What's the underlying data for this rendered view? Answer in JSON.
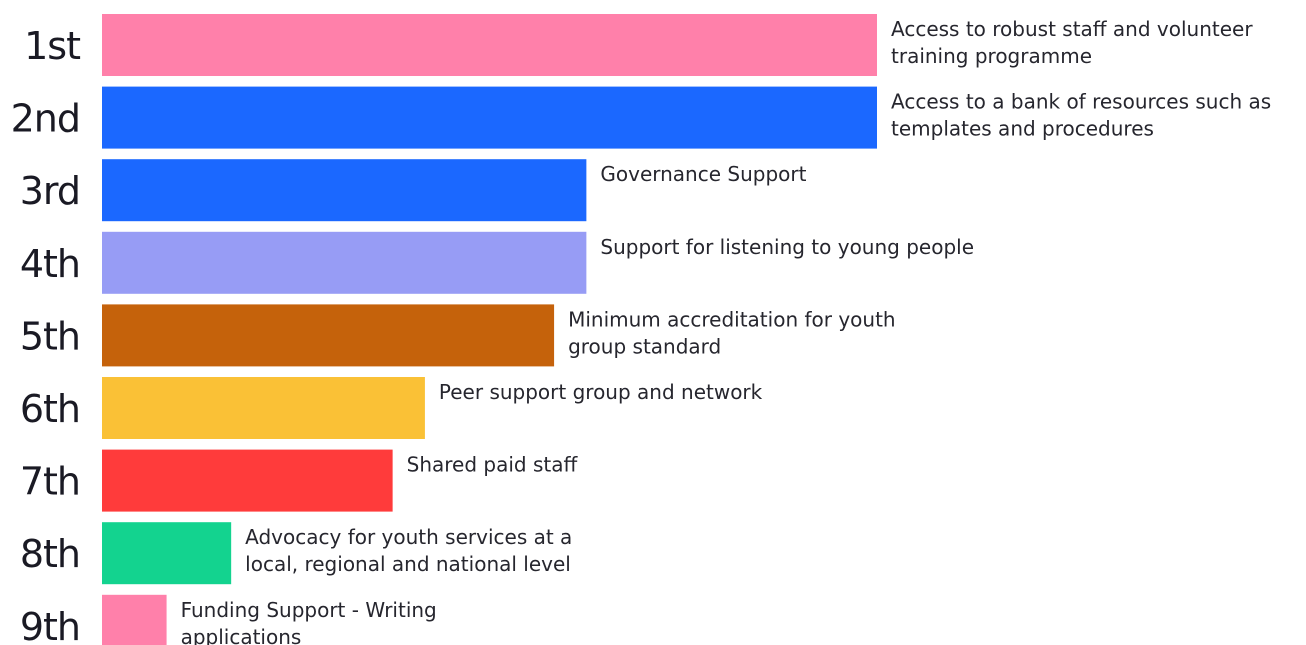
{
  "chart_data": {
    "type": "bar",
    "orientation": "horizontal",
    "categories": [
      "1st",
      "2nd",
      "3rd",
      "4th",
      "5th",
      "6th",
      "7th",
      "8th",
      "9th"
    ],
    "values": [
      24,
      24,
      15,
      15,
      14,
      10,
      9,
      4,
      2
    ],
    "bar_labels": [
      [
        "Access to robust staff and volunteer",
        "training programme"
      ],
      [
        "Access to a bank of resources such as",
        "templates and procedures"
      ],
      [
        "Governance Support"
      ],
      [
        "Support for listening to young people"
      ],
      [
        "Minimum accreditation for youth",
        "group standard"
      ],
      [
        "Peer support group and network"
      ],
      [
        "Shared paid staff"
      ],
      [
        "Advocacy for youth services at a",
        "local, regional and national level"
      ],
      [
        "Funding Support - Writing",
        "applications"
      ]
    ],
    "colors": [
      "#ff80aa",
      "#1b68ff",
      "#1b68ff",
      "#979cf5",
      "#c5620b",
      "#fac136",
      "#ff3b3b",
      "#13d38f",
      "#ff80aa"
    ],
    "title": "",
    "xlabel": "",
    "ylabel": "",
    "grid": false,
    "legend": "none"
  }
}
